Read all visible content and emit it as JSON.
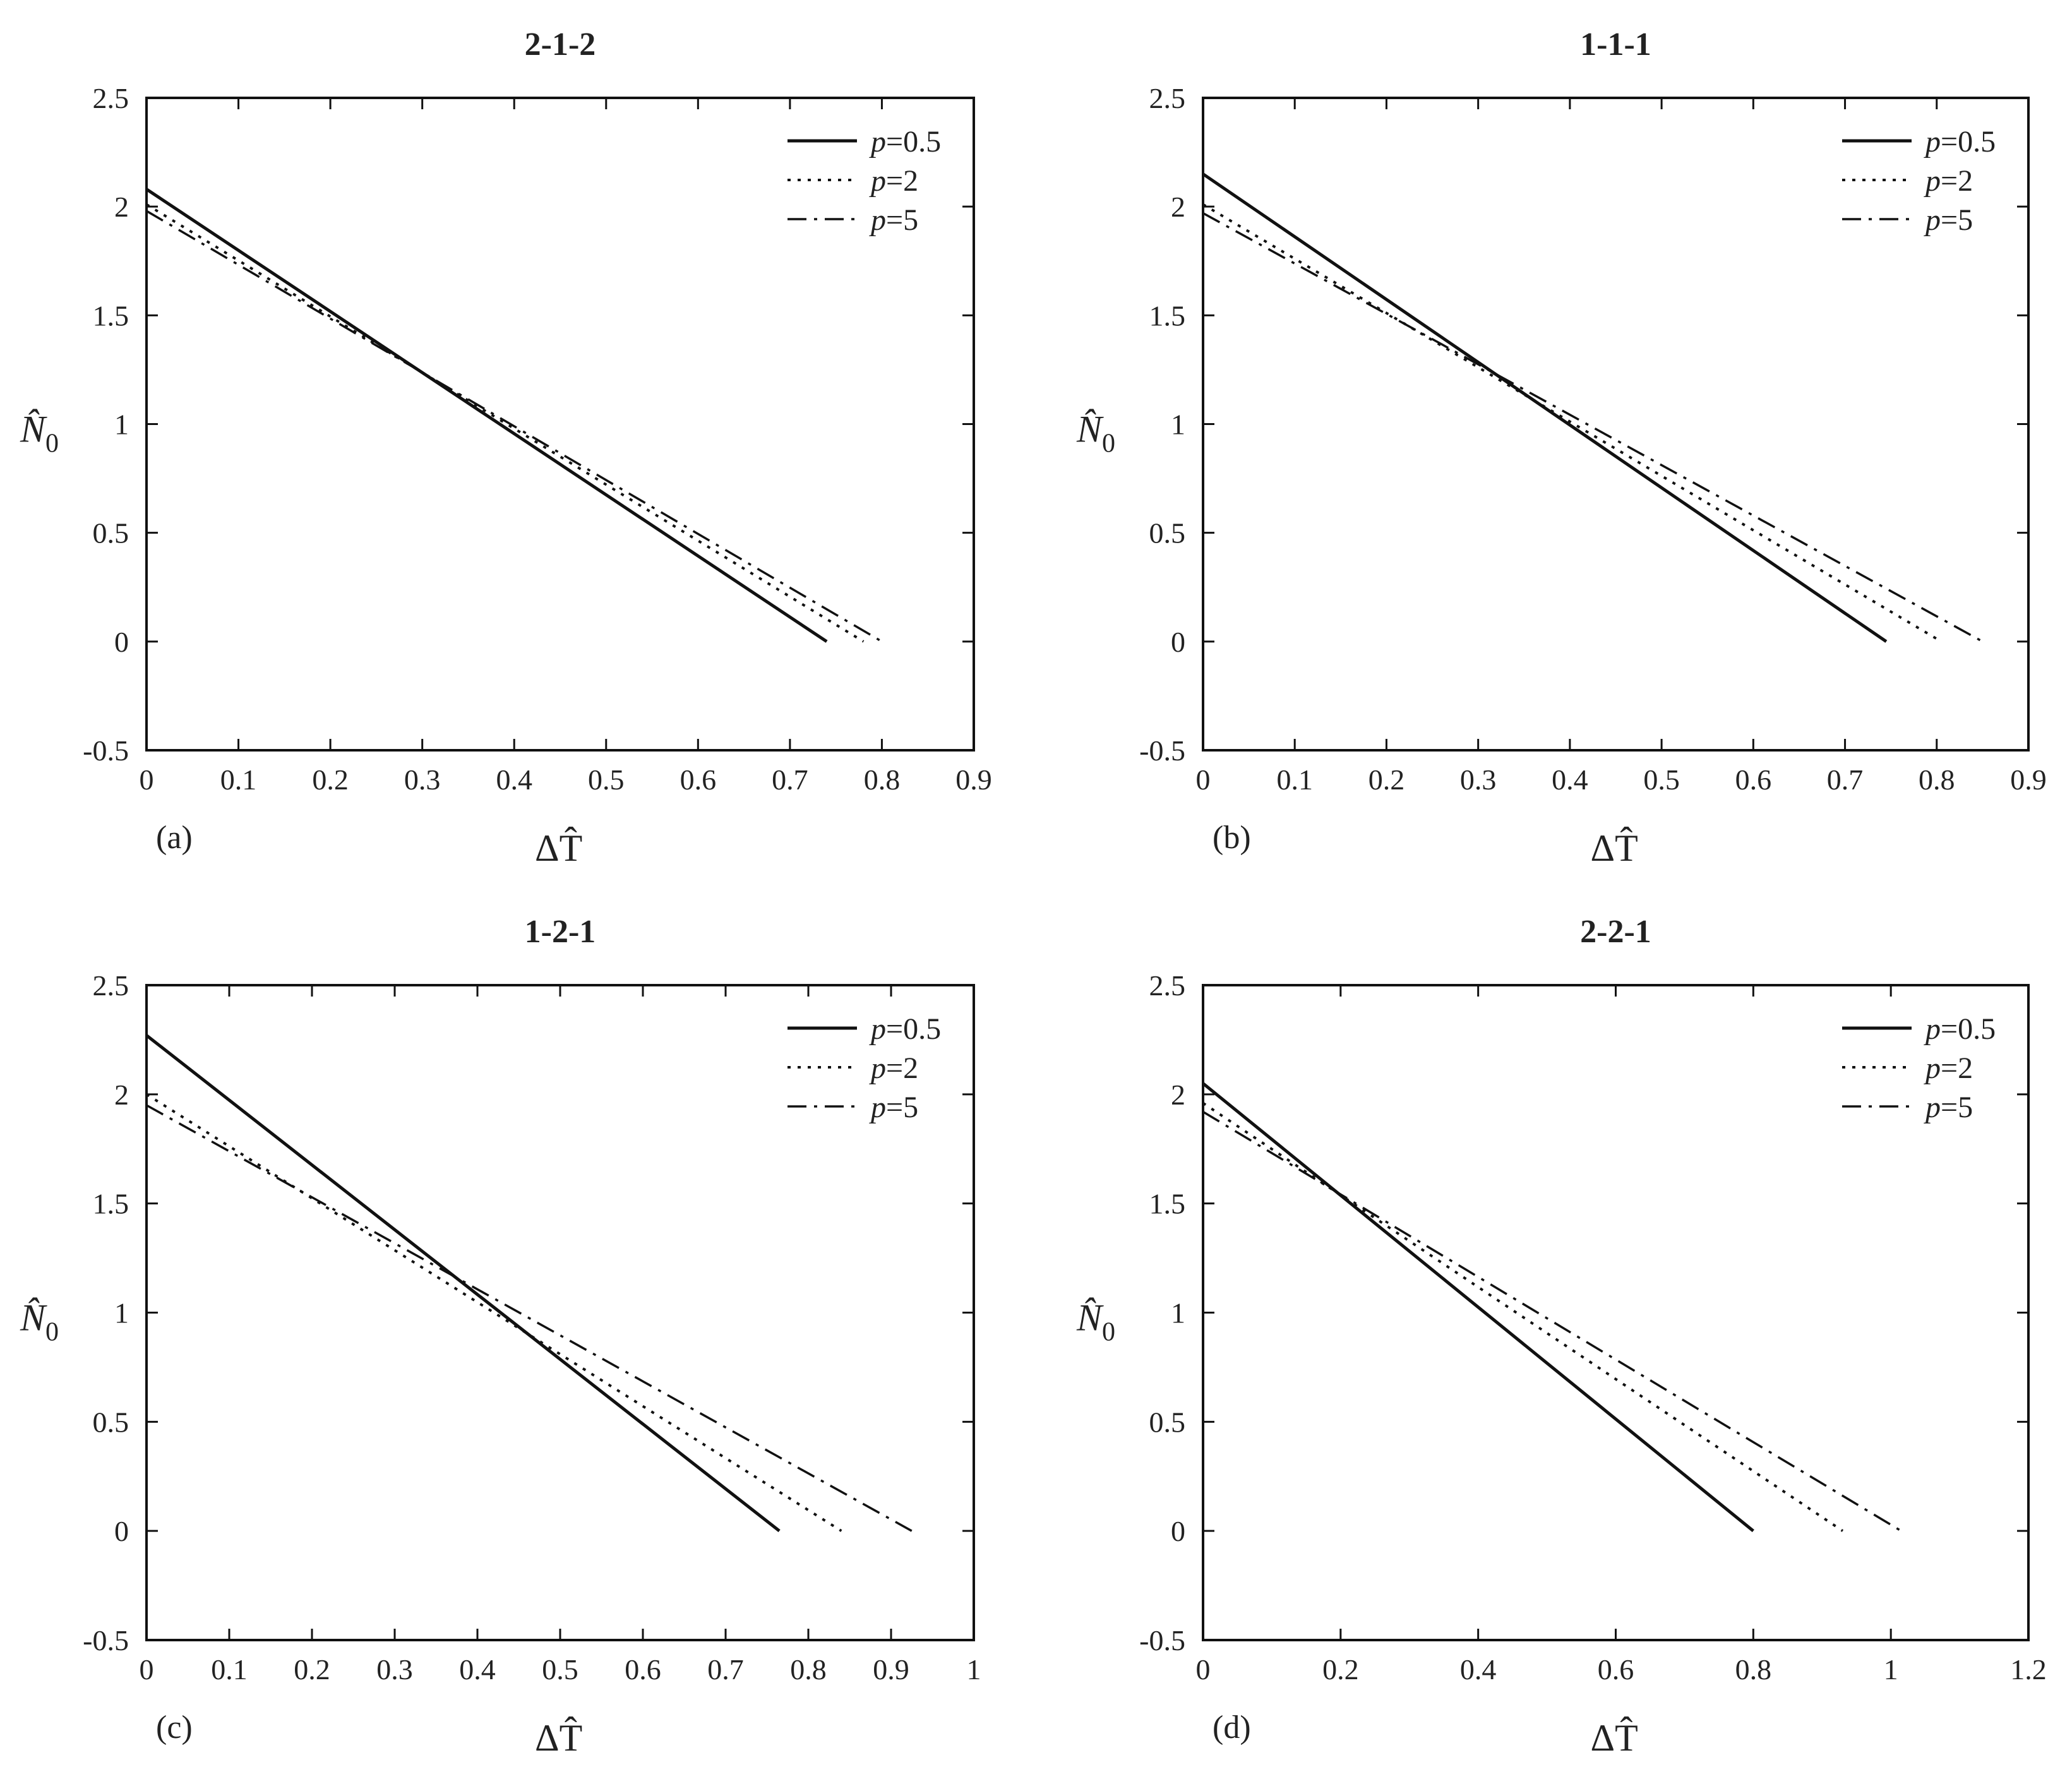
{
  "chart_data": [
    {
      "type": "line",
      "title": "2-1-2",
      "panel_label": "(a)",
      "xlabel": "ΔT̂",
      "ylabel_symbol": "N̂",
      "ylabel_subscript": "0",
      "xlim": [
        0,
        0.9
      ],
      "ylim": [
        -0.5,
        2.5
      ],
      "xticks": [
        "0",
        "0.1",
        "0.2",
        "0.3",
        "0.4",
        "0.5",
        "0.6",
        "0.7",
        "0.8",
        "0.9"
      ],
      "yticks": [
        "-0.5",
        "0",
        "0.5",
        "1",
        "1.5",
        "2",
        "2.5"
      ],
      "legend_position": "top-right",
      "series": [
        {
          "name_var": "p",
          "name_val": "=0.5",
          "style": "solid",
          "x": [
            0,
            0.74
          ],
          "y": [
            2.08,
            0
          ]
        },
        {
          "name_var": "p",
          "name_val": "=2",
          "style": "dotted",
          "x": [
            0,
            0.78
          ],
          "y": [
            2.01,
            0
          ]
        },
        {
          "name_var": "p",
          "name_val": "=5",
          "style": "dashdot",
          "x": [
            0,
            0.8
          ],
          "y": [
            1.98,
            0
          ]
        }
      ]
    },
    {
      "type": "line",
      "title": "1-1-1",
      "panel_label": "(b)",
      "xlabel": "ΔT̂",
      "ylabel_symbol": "N̂",
      "ylabel_subscript": "0",
      "xlim": [
        0,
        0.9
      ],
      "ylim": [
        -0.5,
        2.5
      ],
      "xticks": [
        "0",
        "0.1",
        "0.2",
        "0.3",
        "0.4",
        "0.5",
        "0.6",
        "0.7",
        "0.8",
        "0.9"
      ],
      "yticks": [
        "-0.5",
        "0",
        "0.5",
        "1",
        "1.5",
        "2",
        "2.5"
      ],
      "legend_position": "top-right",
      "series": [
        {
          "name_var": "p",
          "name_val": "=0.5",
          "style": "solid",
          "x": [
            0,
            0.745
          ],
          "y": [
            2.15,
            0
          ]
        },
        {
          "name_var": "p",
          "name_val": "=2",
          "style": "dotted",
          "x": [
            0,
            0.805
          ],
          "y": [
            2.01,
            0
          ]
        },
        {
          "name_var": "p",
          "name_val": "=5",
          "style": "dashdot",
          "x": [
            0,
            0.85
          ],
          "y": [
            1.97,
            0
          ]
        }
      ]
    },
    {
      "type": "line",
      "title": "1-2-1",
      "panel_label": "(c)",
      "xlabel": "ΔT̂",
      "ylabel_symbol": "N̂",
      "ylabel_subscript": "0",
      "xlim": [
        0,
        1
      ],
      "ylim": [
        -0.5,
        2.5
      ],
      "xticks": [
        "0",
        "0.1",
        "0.2",
        "0.3",
        "0.4",
        "0.5",
        "0.6",
        "0.7",
        "0.8",
        "0.9",
        "1"
      ],
      "yticks": [
        "-0.5",
        "0",
        "0.5",
        "1",
        "1.5",
        "2",
        "2.5"
      ],
      "legend_position": "top-right",
      "series": [
        {
          "name_var": "p",
          "name_val": "=0.5",
          "style": "solid",
          "x": [
            0,
            0.765
          ],
          "y": [
            2.27,
            0
          ]
        },
        {
          "name_var": "p",
          "name_val": "=2",
          "style": "dotted",
          "x": [
            0,
            0.84
          ],
          "y": [
            2.0,
            0
          ]
        },
        {
          "name_var": "p",
          "name_val": "=5",
          "style": "dashdot",
          "x": [
            0,
            0.925
          ],
          "y": [
            1.95,
            0
          ]
        }
      ]
    },
    {
      "type": "line",
      "title": "2-2-1",
      "panel_label": "(d)",
      "xlabel": "ΔT̂",
      "ylabel_symbol": "N̂",
      "ylabel_subscript": "0",
      "xlim": [
        0,
        1.2
      ],
      "ylim": [
        -0.5,
        2.5
      ],
      "xticks": [
        "0",
        "0.2",
        "0.4",
        "0.6",
        "0.8",
        "1",
        "1.2"
      ],
      "yticks": [
        "-0.5",
        "0",
        "0.5",
        "1",
        "1.5",
        "2",
        "2.5"
      ],
      "legend_position": "top-right",
      "series": [
        {
          "name_var": "p",
          "name_val": "=0.5",
          "style": "solid",
          "x": [
            0,
            0.8
          ],
          "y": [
            2.05,
            0
          ]
        },
        {
          "name_var": "p",
          "name_val": "=2",
          "style": "dotted",
          "x": [
            0,
            0.93
          ],
          "y": [
            1.96,
            0
          ]
        },
        {
          "name_var": "p",
          "name_val": "=5",
          "style": "dashdot",
          "x": [
            0,
            1.015
          ],
          "y": [
            1.92,
            0
          ]
        }
      ]
    }
  ]
}
